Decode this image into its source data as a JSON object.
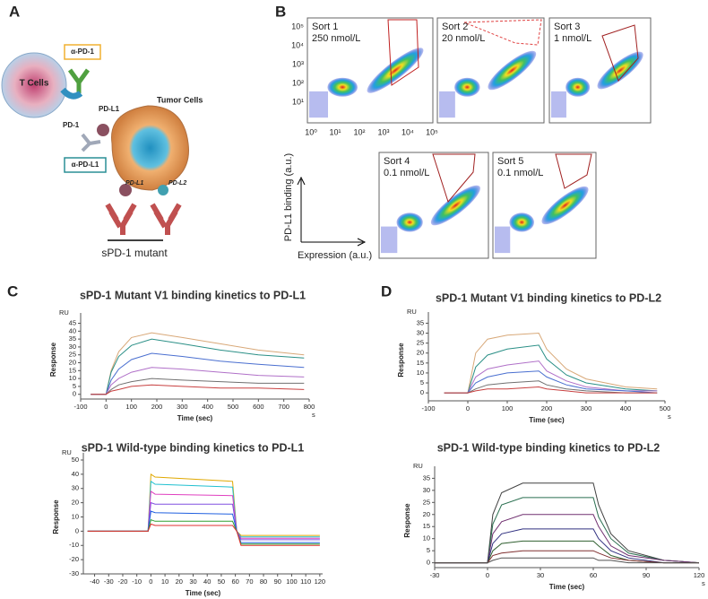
{
  "panel_a": {
    "label": "A",
    "t_cells": "T Cells",
    "anti_pd1": "α-PD-1",
    "pd1": "PD-1",
    "pd_l1_top": "PD-L1",
    "tumor_cells": "Tumor Cells",
    "anti_pd_l1": "α-PD-L1",
    "pd_l1_bottom": "PD-L1",
    "pd_l2": "PD-L2",
    "mutant": "sPD-1 mutant"
  },
  "panel_b": {
    "label": "B",
    "sorts": [
      {
        "name": "Sort 1",
        "concentration": "250 nmol/L"
      },
      {
        "name": "Sort 2",
        "concentration": "20 nmol/L"
      },
      {
        "name": "Sort 3",
        "concentration": "1 nmol/L"
      },
      {
        "name": "Sort 4",
        "concentration": "0.1 nmol/L"
      },
      {
        "name": "Sort 5",
        "concentration": "0.1 nmol/L"
      }
    ],
    "x_ticks": [
      "10⁰",
      "10¹",
      "10²",
      "10³",
      "10⁴",
      "10⁵"
    ],
    "y_ticks": [
      "10⁵",
      "10⁴",
      "10³",
      "10²",
      "10¹"
    ],
    "y_label": "PD-L1 binding (a.u.)",
    "x_label": "Expression (a.u.)"
  },
  "panel_c_label": "C",
  "panel_d_label": "D",
  "chart_data": [
    {
      "type": "line",
      "title": "sPD-1 Mutant V1 binding kinetics to PD-L1",
      "x_label": "Time (sec)",
      "y_label": "Response",
      "y_unit": "RU",
      "x_unit": "s",
      "x": [
        -60,
        -5,
        0,
        20,
        50,
        100,
        180,
        300,
        450,
        600,
        780
      ],
      "series": [
        {
          "color": "#d8a878",
          "values": [
            0,
            0,
            0,
            15,
            27,
            36,
            39,
            36,
            32,
            28,
            25
          ]
        },
        {
          "color": "#2a8f86",
          "values": [
            0,
            0,
            0,
            14,
            24,
            31,
            35,
            32,
            28,
            25,
            23
          ]
        },
        {
          "color": "#4a6fd0",
          "values": [
            0,
            0,
            0,
            9,
            16,
            22,
            26,
            24,
            21,
            19,
            17
          ]
        },
        {
          "color": "#b070c8",
          "values": [
            0,
            0,
            0,
            6,
            10,
            14,
            17,
            16,
            14,
            12,
            11
          ]
        },
        {
          "color": "#707070",
          "values": [
            0,
            0,
            0,
            3,
            6,
            8,
            10,
            9,
            8,
            7,
            7
          ]
        },
        {
          "color": "#c84040",
          "values": [
            0,
            0,
            0,
            2,
            3,
            5,
            6,
            5,
            4,
            4,
            3
          ]
        }
      ],
      "xlim": [
        -100,
        800
      ],
      "xticks": [
        -100,
        0,
        100,
        200,
        300,
        400,
        500,
        600,
        700,
        800
      ],
      "ylim": [
        -3,
        47
      ],
      "yticks": [
        0,
        5,
        10,
        15,
        20,
        25,
        30,
        35,
        40,
        45
      ]
    },
    {
      "type": "line",
      "title": "sPD-1 Mutant V1 binding kinetics to PD-L2",
      "x_label": "Time (sec)",
      "y_label": "Response",
      "y_unit": "RU",
      "x_unit": "s",
      "x": [
        -60,
        -5,
        0,
        20,
        50,
        100,
        180,
        200,
        250,
        300,
        400,
        480
      ],
      "series": [
        {
          "color": "#d8a878",
          "values": [
            0,
            0,
            0,
            20,
            27,
            29,
            30,
            22,
            12,
            7,
            3,
            2
          ]
        },
        {
          "color": "#2a8f86",
          "values": [
            0,
            0,
            0,
            13,
            19,
            22,
            24,
            17,
            9,
            5,
            2,
            1
          ]
        },
        {
          "color": "#b070c8",
          "values": [
            0,
            0,
            0,
            8,
            12,
            14,
            16,
            11,
            6,
            3,
            1,
            1
          ]
        },
        {
          "color": "#4a6fd0",
          "values": [
            0,
            0,
            0,
            5,
            8,
            10,
            11,
            8,
            4,
            2,
            1,
            0
          ]
        },
        {
          "color": "#707070",
          "values": [
            0,
            0,
            0,
            2,
            4,
            5,
            6,
            4,
            2,
            1,
            0,
            0
          ]
        },
        {
          "color": "#c84040",
          "values": [
            0,
            0,
            0,
            1,
            2,
            2,
            3,
            2,
            1,
            0,
            0,
            0
          ]
        }
      ],
      "xlim": [
        -100,
        500
      ],
      "xticks": [
        -100,
        0,
        100,
        200,
        300,
        400,
        500
      ],
      "ylim": [
        -4,
        37
      ],
      "yticks": [
        0,
        5,
        10,
        15,
        20,
        25,
        30,
        35
      ]
    },
    {
      "type": "line",
      "title": "sPD-1 Wild-type binding kinetics to PD-L1",
      "x_label": "Time (sec)",
      "y_label": "Response",
      "y_unit": "RU",
      "x": [
        -45,
        -2,
        0,
        3,
        58,
        61,
        64,
        120
      ],
      "series": [
        {
          "color": "#e0a800",
          "values": [
            0,
            0,
            40,
            38,
            35,
            0,
            -3,
            -3
          ]
        },
        {
          "color": "#20c0d0",
          "values": [
            0,
            0,
            35,
            33,
            31,
            0,
            -4,
            -4
          ]
        },
        {
          "color": "#e040c0",
          "values": [
            0,
            0,
            28,
            26,
            25,
            0,
            -5,
            -5
          ]
        },
        {
          "color": "#8050e0",
          "values": [
            0,
            0,
            20,
            19,
            19,
            0,
            -6,
            -6
          ]
        },
        {
          "color": "#2060e0",
          "values": [
            0,
            0,
            14,
            13,
            12,
            0,
            -8,
            -8
          ]
        },
        {
          "color": "#30a030",
          "values": [
            0,
            0,
            8,
            7,
            7,
            0,
            -9,
            -9
          ]
        },
        {
          "color": "#e03030",
          "values": [
            0,
            0,
            5,
            4,
            4,
            0,
            -10,
            -10
          ]
        }
      ],
      "xlim": [
        -48,
        122
      ],
      "xticks": [
        -40,
        -30,
        -20,
        -10,
        0,
        10,
        20,
        30,
        40,
        50,
        60,
        70,
        80,
        90,
        100,
        110,
        120
      ],
      "ylim": [
        -30,
        50
      ],
      "yticks": [
        -30,
        -20,
        -10,
        0,
        10,
        20,
        30,
        40,
        50
      ]
    },
    {
      "type": "line",
      "title": "sPD-1 Wild-type binding kinetics to PD-L2",
      "x_label": "Time (sec)",
      "y_label": "Response",
      "y_unit": "RU",
      "x_unit": "s",
      "x": [
        -30,
        -1,
        0,
        3,
        8,
        20,
        60,
        63,
        70,
        80,
        100,
        120
      ],
      "series": [
        {
          "color": "#404040",
          "values": [
            0,
            0,
            0,
            20,
            29,
            33,
            33,
            24,
            12,
            5,
            1,
            0
          ]
        },
        {
          "color": "#2a6f50",
          "values": [
            0,
            0,
            0,
            16,
            24,
            27,
            27,
            19,
            10,
            4,
            1,
            0
          ]
        },
        {
          "color": "#703070",
          "values": [
            0,
            0,
            0,
            12,
            17,
            20,
            20,
            15,
            7,
            3,
            1,
            0
          ]
        },
        {
          "color": "#303080",
          "values": [
            0,
            0,
            0,
            8,
            12,
            14,
            14,
            10,
            5,
            2,
            0,
            0
          ]
        },
        {
          "color": "#306030",
          "values": [
            0,
            0,
            0,
            5,
            8,
            9,
            9,
            7,
            3,
            1,
            0,
            0
          ]
        },
        {
          "color": "#803030",
          "values": [
            0,
            0,
            0,
            3,
            4,
            5,
            5,
            4,
            2,
            1,
            0,
            0
          ]
        },
        {
          "color": "#505050",
          "values": [
            0,
            0,
            0,
            1,
            2,
            2,
            2,
            1,
            1,
            0,
            0,
            0
          ]
        }
      ],
      "xlim": [
        -30,
        120
      ],
      "xticks": [
        -30,
        0,
        30,
        60,
        90,
        120
      ],
      "ylim": [
        -2,
        37
      ],
      "yticks": [
        0,
        5,
        10,
        15,
        20,
        25,
        30,
        35
      ]
    }
  ]
}
